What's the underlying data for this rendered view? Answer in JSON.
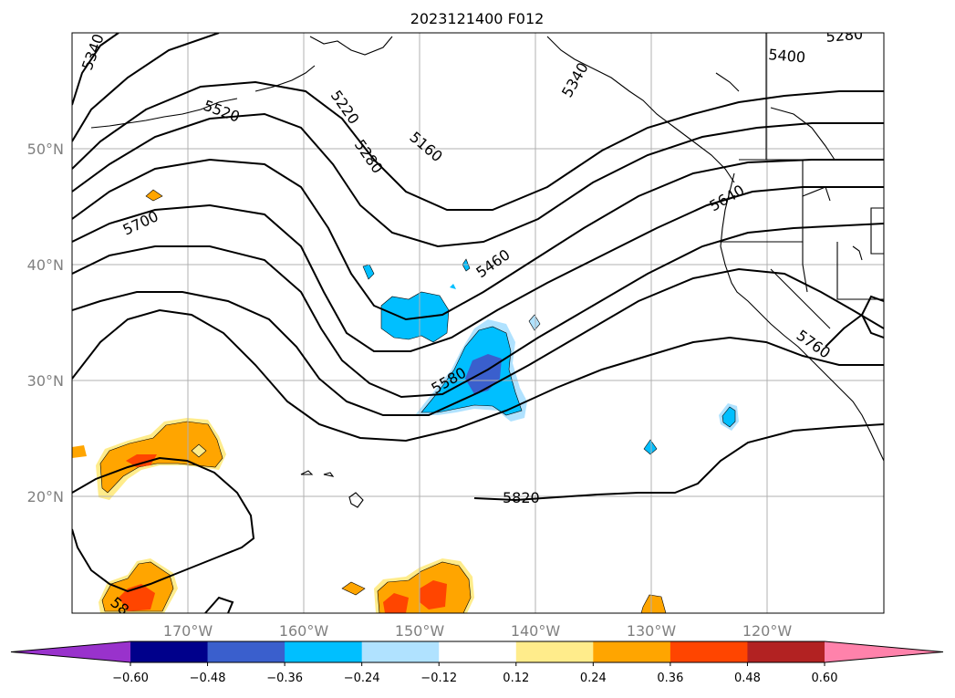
{
  "title": "2023121400 F012",
  "lat_labels": [
    "50°N",
    "40°N",
    "30°N",
    "20°N"
  ],
  "lon_labels": [
    "170°W",
    "160°W",
    "150°W",
    "140°W",
    "130°W",
    "120°W"
  ],
  "contour_labels": [
    "5340",
    "5220",
    "5160",
    "5340",
    "5280",
    "5400",
    "5520",
    "5280",
    "5700",
    "5460",
    "5640",
    "5580",
    "5760",
    "5820",
    "58"
  ],
  "colorbar": {
    "tick_labels": [
      "−0.60",
      "−0.48",
      "−0.36",
      "−0.24",
      "−0.12",
      "0.12",
      "0.24",
      "0.36",
      "0.48",
      "0.60"
    ],
    "colors": [
      "#9932cc",
      "#00008b",
      "#3a5fcd",
      "#00bfff",
      "#b0e2ff",
      "#ffffff",
      "#ffec8b",
      "#ffa500",
      "#ff4500",
      "#b22222",
      "#ff82ab"
    ]
  }
}
